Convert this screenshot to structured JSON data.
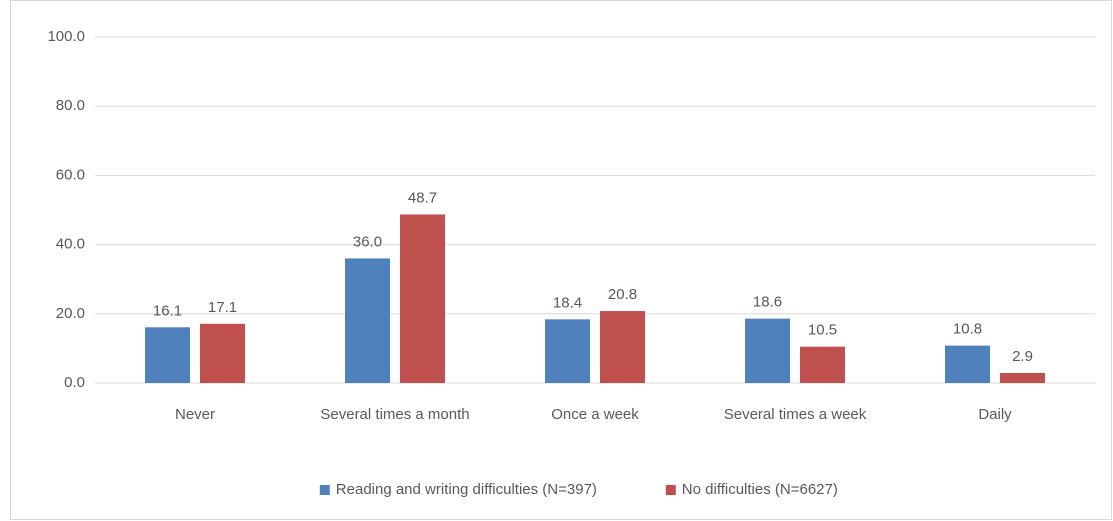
{
  "chart_data": {
    "type": "bar",
    "categories": [
      "Never",
      "Several times a month",
      "Once a week",
      "Several times a week",
      "Daily"
    ],
    "series": [
      {
        "name": "Reading and writing difficulties (N=397)",
        "color": "#4f81bd",
        "values": [
          16.1,
          36.0,
          18.4,
          18.6,
          10.8
        ],
        "value_labels": [
          "16.1",
          "36.0",
          "18.4",
          "18.6",
          "10.8"
        ]
      },
      {
        "name": "No difficulties (N=6627)",
        "color": "#c0504d",
        "values": [
          17.1,
          48.7,
          20.8,
          10.5,
          2.9
        ],
        "value_labels": [
          "17.1",
          "48.7",
          "20.8",
          "10.5",
          "2.9"
        ]
      }
    ],
    "ylim": [
      0,
      100
    ],
    "yticks": [
      {
        "value": 0,
        "label": "0.0"
      },
      {
        "value": 20,
        "label": "20.0"
      },
      {
        "value": 40,
        "label": "40.0"
      },
      {
        "value": 60,
        "label": "60.0"
      },
      {
        "value": 80,
        "label": "80.0"
      },
      {
        "value": 100,
        "label": "100.0"
      }
    ],
    "grid": true,
    "legend": "bottom"
  }
}
